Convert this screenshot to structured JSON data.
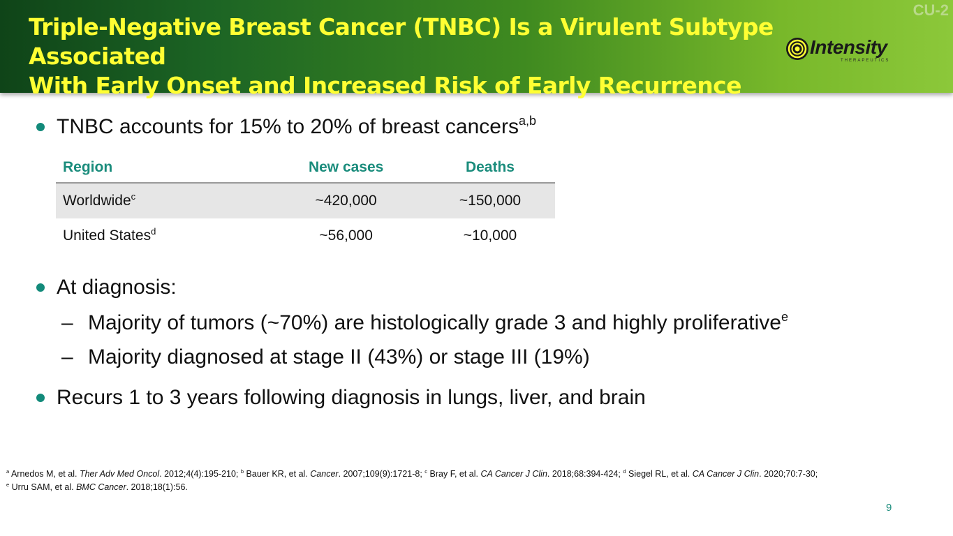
{
  "header": {
    "title_line1": "Triple-Negative Breast Cancer (TNBC) Is a Virulent Subtype Associated",
    "title_line2": "With Early Onset and Increased Risk of Early Recurrence",
    "slide_code": "CU-2",
    "logo_name": "Intensity",
    "logo_sub": "THERAPEUTICS"
  },
  "bullets": {
    "b1_text": "TNBC accounts for 15% to 20% of breast cancers",
    "b1_sup": "a,b",
    "b2_text": "At diagnosis:",
    "sub1_dash": "–",
    "sub1_text": "Majority of tumors (~70%) are histologically grade 3 and highly proliferative",
    "sub1_sup": "e",
    "sub2_dash": "–",
    "sub2_text": "Majority diagnosed at stage II (43%) or stage III (19%)",
    "b3_text": "Recurs 1 to 3 years following diagnosis in lungs, liver, and brain"
  },
  "table": {
    "headers": [
      "Region",
      "New cases",
      "Deaths"
    ],
    "rows": [
      {
        "region": "Worldwide",
        "sup": "c",
        "new_cases": "~420,000",
        "deaths": "~150,000"
      },
      {
        "region": "United States",
        "sup": "d",
        "new_cases": "~56,000",
        "deaths": "~10,000"
      }
    ]
  },
  "references": {
    "a_sup": "a",
    "a_text": "Arnedos M, et al.",
    "a_journal": "Ther Adv Med Oncol",
    "a_cite": ". 2012;4(4):195-210;",
    "b_sup": "b",
    "b_text": "Bauer KR, et al.",
    "b_journal": "Cancer",
    "b_cite": ". 2007;109(9):1721-8;",
    "c_sup": "c",
    "c_text": "Bray F, et al.",
    "c_journal": "CA Cancer J Clin",
    "c_cite": ". 2018;68:394-424;",
    "d_sup": "d",
    "d_text": "Siegel RL, et al.",
    "d_journal": "CA Cancer J Clin",
    "d_cite": ". 2020;70:7-30;",
    "e_sup": "e",
    "e_text": "Urru SAM, et al.",
    "e_journal": "BMC Cancer",
    "e_cite": ". 2018;18(1):56."
  },
  "page_number": "9",
  "colors": {
    "title": "#ffff33",
    "accent": "#1a8c7c",
    "bullet": "#128a7a"
  }
}
